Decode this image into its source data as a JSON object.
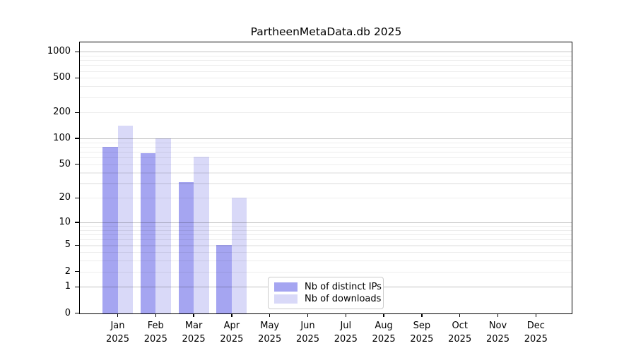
{
  "chart_data": {
    "type": "bar",
    "title": "PartheenMetaData.db 2025",
    "categories": [
      "Jan",
      "Feb",
      "Mar",
      "Apr",
      "May",
      "Jun",
      "Jul",
      "Aug",
      "Sep",
      "Oct",
      "Nov",
      "Dec"
    ],
    "category_year": "2025",
    "series": [
      {
        "name": "Nb of distinct IPs",
        "color": "#a5a5f1",
        "values": [
          80,
          67,
          31,
          5,
          0,
          0,
          0,
          0,
          0,
          0,
          0,
          0
        ]
      },
      {
        "name": "Nb of downloads",
        "color": "#d9d9f8",
        "values": [
          141,
          100,
          61,
          20,
          0,
          0,
          0,
          0,
          0,
          0,
          0,
          0
        ]
      }
    ],
    "yscale": "log1p",
    "yticks": [
      0,
      1,
      2,
      5,
      10,
      20,
      50,
      100,
      200,
      500,
      1000
    ],
    "ylim": [
      0,
      1280
    ],
    "xlabel": "",
    "ylabel": "",
    "grid": true,
    "grid_major_color": "rgba(0,0,0,0.24)",
    "grid_minor_color": "rgba(0,0,0,0.07)",
    "legend": {
      "location": "inside-bottom-center",
      "border_color": "#cbcbcb",
      "background": "#ffffff"
    },
    "background": "#ffffff",
    "spine_color": "#000000"
  }
}
